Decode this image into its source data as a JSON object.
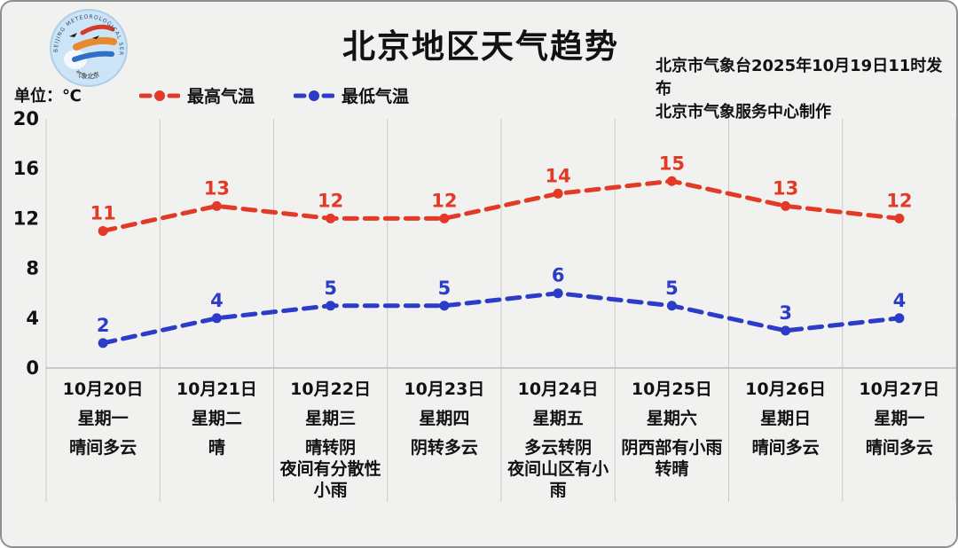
{
  "header": {
    "title": "北京地区天气趋势",
    "publisher_line1": "北京市气象台2025年10月19日11时发布",
    "publisher_line2": "北京市气象服务中心制作",
    "unit_label": "单位：℃"
  },
  "logo": {
    "ring_text": "BEIJING METEOROLOGICAL SERVICE",
    "bottom_text": "气象北京"
  },
  "colors": {
    "max_temp": "#e23a26",
    "min_temp": "#2c3bc8",
    "background": "#f1f1ef",
    "gridline": "#c9c9c9",
    "text": "#111111"
  },
  "chart_data": {
    "type": "line",
    "title": "北京地区天气趋势",
    "unit": "℃",
    "ylim": [
      0,
      20
    ],
    "y_ticks": [
      0,
      4,
      8,
      12,
      16,
      20
    ],
    "grid": "vertical day separators + zero baseline, horizontal gridlines off",
    "legend_position": "top-left",
    "line_style": "dashed with round dot markers, value labels above points",
    "categories": [
      "10月20日",
      "10月21日",
      "10月22日",
      "10月23日",
      "10月24日",
      "10月25日",
      "10月26日",
      "10月27日"
    ],
    "weekdays": [
      "星期一",
      "星期二",
      "星期三",
      "星期四",
      "星期五",
      "星期六",
      "星期日",
      "星期一"
    ],
    "weather": [
      [
        "晴间多云"
      ],
      [
        "晴"
      ],
      [
        "晴转阴",
        "夜间有分散性",
        "小雨"
      ],
      [
        "阴转多云"
      ],
      [
        "多云转阴",
        "夜间山区有小",
        "雨"
      ],
      [
        "阴西部有小雨",
        "转晴"
      ],
      [
        "晴间多云"
      ],
      [
        "晴间多云"
      ]
    ],
    "series": [
      {
        "name": "最高气温",
        "color": "#e23a26",
        "values": [
          11,
          13,
          12,
          12,
          14,
          15,
          13,
          12
        ]
      },
      {
        "name": "最低气温",
        "color": "#2c3bc8",
        "values": [
          2,
          4,
          5,
          5,
          6,
          5,
          3,
          4
        ]
      }
    ]
  }
}
